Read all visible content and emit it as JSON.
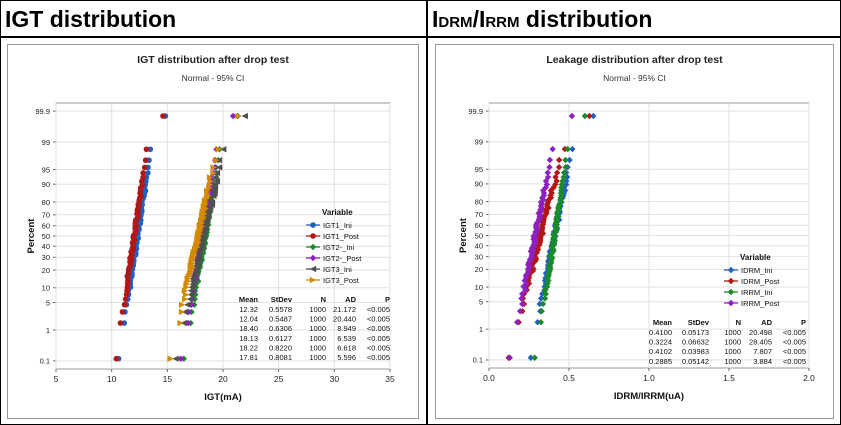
{
  "header": {
    "left_title": "IGT distribution",
    "right_title_prefix": "I",
    "right_title_sub1": "DRM",
    "right_title_mid": "/I",
    "right_title_sub2": "RRM",
    "right_title_suffix": " distribution"
  },
  "chart_data": [
    {
      "type": "scatter",
      "title": "IGT distribution after drop test",
      "subtitle": "Normal - 95% CI",
      "xlabel": "IGT(mA)",
      "ylabel": "Percent",
      "x_ticks": [
        "5",
        "10",
        "15",
        "20",
        "25",
        "30",
        "35"
      ],
      "x_tick_values": [
        5,
        10,
        15,
        20,
        25,
        30,
        35
      ],
      "xlim": [
        5,
        35
      ],
      "y_scale": "normal-probability",
      "y_ticks": [
        "0.1",
        "1",
        "5",
        "10",
        "20",
        "30",
        "40",
        "50",
        "60",
        "70",
        "80",
        "90",
        "95",
        "99",
        "99.9"
      ],
      "y_tick_values": [
        0.1,
        1,
        5,
        10,
        20,
        30,
        40,
        50,
        60,
        70,
        80,
        90,
        95,
        99,
        99.9
      ],
      "ylim": [
        0.05,
        99.95
      ],
      "grid": true,
      "legend_title": "Variable",
      "legend_position": "right",
      "series": [
        {
          "name": "IGT1_Ini",
          "color": "#2060c0",
          "marker": "circle",
          "mean": 12.32,
          "stdev": 0.5578
        },
        {
          "name": "IGT1_Post",
          "color": "#b01818",
          "marker": "circle",
          "mean": 12.04,
          "stdev": 0.5487
        },
        {
          "name": "IGT2-_Ini",
          "color": "#1a8a2a",
          "marker": "diamond",
          "mean": 18.4,
          "stdev": 0.6306
        },
        {
          "name": "IGT2-_Post",
          "color": "#8e1fc0",
          "marker": "diamond",
          "mean": 18.13,
          "stdev": 0.6127
        },
        {
          "name": "IGT3_Ini",
          "color": "#505050",
          "marker": "triangle-left",
          "mean": 18.22,
          "stdev": 0.822
        },
        {
          "name": "IGT3_Post",
          "color": "#d48a00",
          "marker": "triangle-right",
          "mean": 17.81,
          "stdev": 0.8081
        }
      ],
      "stats_table": {
        "headers": [
          "Mean",
          "StDev",
          "N",
          "AD",
          "P"
        ],
        "rows": [
          [
            "12.32",
            "0.5578",
            "1000",
            "21.172",
            "<0.005"
          ],
          [
            "12.04",
            "0.5487",
            "1000",
            "20.440",
            "<0.005"
          ],
          [
            "18.40",
            "0.6306",
            "1000",
            "8.949",
            "<0.005"
          ],
          [
            "18.13",
            "0.6127",
            "1000",
            "6.539",
            "<0.005"
          ],
          [
            "18.22",
            "0.8220",
            "1000",
            "6.618",
            "<0.005"
          ],
          [
            "17.81",
            "0.8081",
            "1000",
            "5.596",
            "<0.005"
          ]
        ]
      }
    },
    {
      "type": "scatter",
      "title": "Leakage distribution after drop test",
      "subtitle": "Normal - 95% CI",
      "xlabel": "IDRM/IRRM(uA)",
      "ylabel": "Percent",
      "x_ticks": [
        "0.0",
        "0.5",
        "1.0",
        "1.5",
        "2.0"
      ],
      "x_tick_values": [
        0.0,
        0.5,
        1.0,
        1.5,
        2.0
      ],
      "xlim": [
        0.0,
        2.0
      ],
      "y_scale": "normal-probability",
      "y_ticks": [
        "0.1",
        "1",
        "5",
        "10",
        "20",
        "30",
        "40",
        "50",
        "60",
        "70",
        "80",
        "90",
        "95",
        "99",
        "99.9"
      ],
      "y_tick_values": [
        0.1,
        1,
        5,
        10,
        20,
        30,
        40,
        50,
        60,
        70,
        80,
        90,
        95,
        99,
        99.9
      ],
      "ylim": [
        0.05,
        99.95
      ],
      "grid": true,
      "legend_title": "Variable",
      "legend_position": "right",
      "series": [
        {
          "name": "IDRM_Ini",
          "color": "#2060c0",
          "marker": "diamond",
          "mean": 0.41,
          "stdev": 0.05173
        },
        {
          "name": "IDRM_Post",
          "color": "#b01818",
          "marker": "diamond",
          "mean": 0.3224,
          "stdev": 0.06632
        },
        {
          "name": "IRRM_Ini",
          "color": "#1a8a2a",
          "marker": "diamond",
          "mean": 0.4102,
          "stdev": 0.03983
        },
        {
          "name": "IRRM_Post",
          "color": "#8e1fc0",
          "marker": "diamond",
          "mean": 0.2885,
          "stdev": 0.05142
        }
      ],
      "stats_table": {
        "headers": [
          "Mean",
          "StDev",
          "N",
          "AD",
          "P"
        ],
        "rows": [
          [
            "0.4100",
            "0.05173",
            "1000",
            "20.498",
            "<0.005"
          ],
          [
            "0.3224",
            "0.06632",
            "1000",
            "28.405",
            "<0.005"
          ],
          [
            "0.4102",
            "0.03983",
            "1000",
            "7.807",
            "<0.005"
          ],
          [
            "0.2885",
            "0.05142",
            "1000",
            "3.884",
            "<0.005"
          ]
        ]
      }
    }
  ]
}
